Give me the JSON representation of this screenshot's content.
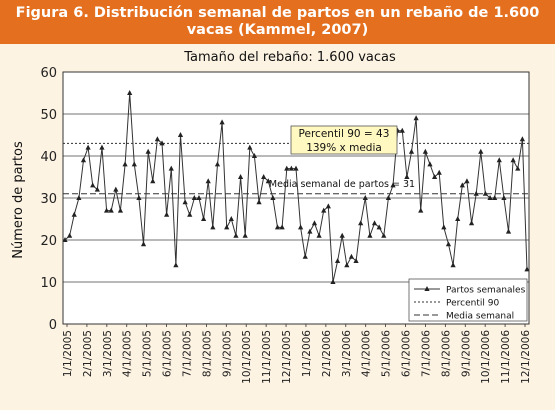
{
  "header": {
    "line1": "Figura 6. Distribución semanal de partos en un rebaño de 1.600",
    "line2": "vacas (Kammel, 2007)"
  },
  "colors": {
    "header_bg": "#e46f1e",
    "page_bg": "#fdf3e3",
    "series": "#333333",
    "box_bg": "#fff8c0"
  },
  "chart_data": {
    "type": "line",
    "title": "Tamaño del rebaño: 1.600 vacas",
    "ylabel": "Número de partos",
    "xlabel": "",
    "ylim": [
      0,
      60
    ],
    "yticks": [
      0,
      10,
      20,
      30,
      40,
      50,
      60
    ],
    "grid": "horizontal",
    "x_tick_labels": [
      "1/1/2005",
      "2/1/2005",
      "3/1/2005",
      "4/1/2005",
      "5/1/2005",
      "6/1/2005",
      "7/1/2005",
      "8/1/2005",
      "9/1/2005",
      "10/1/2005",
      "11/1/2005",
      "12/1/2005",
      "1/1/2006",
      "2/1/2006",
      "3/1/2006",
      "4/1/2006",
      "5/1/2006",
      "6/1/2006",
      "7/1/2006",
      "8/1/2006",
      "9/1/2006",
      "10/1/2006",
      "11/1/2006",
      "12/1/2006"
    ],
    "legend_position": "bottom-right",
    "series": [
      {
        "name": "Partos semanales",
        "style": "solid-triangle",
        "values": [
          20,
          21,
          26,
          30,
          39,
          42,
          33,
          32,
          42,
          27,
          27,
          32,
          27,
          38,
          55,
          38,
          30,
          19,
          41,
          34,
          44,
          43,
          26,
          37,
          14,
          45,
          29,
          26,
          30,
          30,
          25,
          34,
          23,
          38,
          48,
          23,
          25,
          21,
          35,
          21,
          42,
          40,
          29,
          35,
          34,
          30,
          23,
          23,
          37,
          37,
          37,
          23,
          16,
          22,
          24,
          21,
          27,
          28,
          10,
          15,
          21,
          14,
          16,
          15,
          24,
          30,
          21,
          24,
          23,
          21,
          30,
          33,
          46,
          46,
          35,
          41,
          49,
          27,
          41,
          38,
          35,
          36,
          23,
          19,
          14,
          25,
          33,
          34,
          24,
          31,
          41,
          31,
          30,
          30,
          39,
          30,
          22,
          39,
          37,
          44,
          13
        ]
      },
      {
        "name": "Percentil 90",
        "style": "dotted",
        "values": [
          43
        ]
      },
      {
        "name": "Media semanal",
        "style": "dashed",
        "values": [
          31
        ]
      }
    ],
    "annotations": [
      {
        "text1": "Percentil 90 = 43",
        "text2": "139% x media"
      },
      {
        "text": "Media semanal de partos = 31"
      }
    ]
  }
}
